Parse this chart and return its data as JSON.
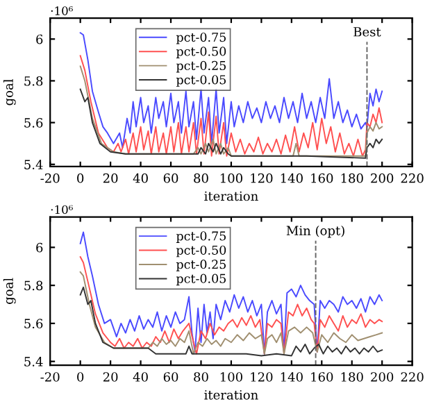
{
  "chart_data": [
    {
      "type": "line",
      "xlabel": "iteration",
      "ylabel": "goal",
      "annotations": [
        "·10⁶"
      ],
      "xlim": [
        -20,
        220
      ],
      "xticks": [
        -20,
        0,
        20,
        40,
        60,
        80,
        100,
        120,
        140,
        160,
        180,
        200,
        220
      ],
      "ylim": [
        5.39,
        6.1
      ],
      "yticks": [
        5.4,
        5.6,
        5.8,
        6
      ],
      "legend": "top left",
      "grid": false,
      "marker": "none",
      "line_style": "solid",
      "ref_lines": [
        {
          "axis": "x",
          "value": 190,
          "label": "Best",
          "color": "#666666",
          "line_style": "dashed"
        }
      ],
      "series": [
        {
          "name": "pct-0.75",
          "color": "#4a4aff",
          "x": [
            0,
            2,
            5,
            8,
            12,
            15,
            18,
            22,
            26,
            28,
            31,
            33,
            35,
            37,
            40,
            42,
            45,
            47,
            50,
            52,
            55,
            57,
            60,
            62,
            65,
            67,
            70,
            72,
            75,
            77,
            80,
            82,
            85,
            87,
            90,
            92,
            95,
            97,
            100,
            102,
            105,
            108,
            111,
            114,
            117,
            120,
            123,
            126,
            129,
            132,
            135,
            138,
            141,
            144,
            147,
            150,
            153,
            156,
            159,
            162,
            165,
            168,
            171,
            174,
            177,
            180,
            183,
            186,
            189,
            190,
            192,
            194,
            196,
            198,
            200
          ],
          "values": [
            6.03,
            6.02,
            5.9,
            5.75,
            5.65,
            5.58,
            5.55,
            5.5,
            5.55,
            5.48,
            5.62,
            5.55,
            5.7,
            5.58,
            5.72,
            5.6,
            5.68,
            5.55,
            5.72,
            5.62,
            5.7,
            5.58,
            5.74,
            5.6,
            5.7,
            5.55,
            5.75,
            5.58,
            5.7,
            5.52,
            5.76,
            5.55,
            5.72,
            5.5,
            5.76,
            5.55,
            5.72,
            5.5,
            5.7,
            5.58,
            5.68,
            5.6,
            5.7,
            5.62,
            5.67,
            5.6,
            5.7,
            5.62,
            5.68,
            5.6,
            5.72,
            5.62,
            5.7,
            5.6,
            5.74,
            5.62,
            5.7,
            5.6,
            5.72,
            5.62,
            5.81,
            5.62,
            5.7,
            5.6,
            5.66,
            5.58,
            5.64,
            5.57,
            5.6,
            5.58,
            5.74,
            5.68,
            5.76,
            5.7,
            5.75
          ]
        },
        {
          "name": "pct-0.50",
          "color": "#ff5050",
          "x": [
            0,
            3,
            7,
            12,
            18,
            22,
            25,
            27,
            30,
            32,
            35,
            37,
            40,
            42,
            45,
            47,
            50,
            52,
            55,
            57,
            60,
            62,
            65,
            67,
            70,
            72,
            75,
            77,
            80,
            82,
            85,
            87,
            90,
            92,
            95,
            97,
            100,
            103,
            106,
            109,
            112,
            115,
            118,
            121,
            124,
            127,
            130,
            133,
            136,
            139,
            142,
            145,
            148,
            151,
            154,
            157,
            160,
            163,
            166,
            169,
            172,
            175,
            178,
            181,
            184,
            187,
            189,
            190,
            192,
            194,
            196,
            198,
            200
          ],
          "values": [
            5.92,
            5.85,
            5.7,
            5.55,
            5.48,
            5.46,
            5.5,
            5.46,
            5.52,
            5.45,
            5.55,
            5.46,
            5.58,
            5.47,
            5.56,
            5.45,
            5.58,
            5.46,
            5.55,
            5.45,
            5.58,
            5.46,
            5.6,
            5.45,
            5.58,
            5.46,
            5.6,
            5.45,
            5.62,
            5.45,
            5.65,
            5.44,
            5.63,
            5.45,
            5.6,
            5.44,
            5.55,
            5.46,
            5.52,
            5.45,
            5.5,
            5.46,
            5.53,
            5.45,
            5.5,
            5.46,
            5.52,
            5.45,
            5.54,
            5.46,
            5.58,
            5.46,
            5.55,
            5.48,
            5.6,
            5.47,
            5.62,
            5.5,
            5.58,
            5.46,
            5.55,
            5.45,
            5.5,
            5.44,
            5.52,
            5.44,
            5.47,
            5.6,
            5.58,
            5.64,
            5.6,
            5.67,
            5.6
          ]
        },
        {
          "name": "pct-0.25",
          "color": "#a08f70",
          "x": [
            0,
            3,
            8,
            14,
            22,
            30,
            50,
            75,
            78,
            80,
            83,
            85,
            88,
            90,
            93,
            95,
            98,
            100,
            120,
            141,
            143,
            145,
            160,
            189,
            190,
            192,
            194,
            196,
            198,
            200
          ],
          "values": [
            5.87,
            5.8,
            5.62,
            5.5,
            5.46,
            5.45,
            5.45,
            5.45,
            5.48,
            5.45,
            5.5,
            5.46,
            5.52,
            5.45,
            5.5,
            5.45,
            5.48,
            5.44,
            5.44,
            5.44,
            5.5,
            5.44,
            5.44,
            5.44,
            5.55,
            5.58,
            5.56,
            5.6,
            5.57,
            5.58
          ]
        },
        {
          "name": "pct-0.05",
          "color": "#333333",
          "x": [
            0,
            3,
            5,
            8,
            13,
            20,
            30,
            50,
            78,
            80,
            83,
            85,
            88,
            90,
            93,
            95,
            98,
            100,
            120,
            150,
            189,
            190,
            192,
            194,
            196,
            198,
            200
          ],
          "values": [
            5.76,
            5.7,
            5.72,
            5.6,
            5.5,
            5.46,
            5.45,
            5.45,
            5.45,
            5.48,
            5.45,
            5.5,
            5.46,
            5.5,
            5.45,
            5.48,
            5.45,
            5.44,
            5.44,
            5.44,
            5.43,
            5.48,
            5.5,
            5.48,
            5.52,
            5.5,
            5.52
          ]
        }
      ]
    },
    {
      "type": "line",
      "xlabel": "iteration",
      "ylabel": "goal",
      "annotations": [
        "·10⁶"
      ],
      "xlim": [
        -20,
        220
      ],
      "xticks": [
        -20,
        0,
        20,
        40,
        60,
        80,
        100,
        120,
        140,
        160,
        180,
        200,
        220
      ],
      "ylim": [
        5.38,
        6.16
      ],
      "yticks": [
        5.4,
        5.6,
        5.8,
        6
      ],
      "legend": "top left",
      "grid": false,
      "marker": "none",
      "line_style": "solid",
      "ref_lines": [
        {
          "axis": "x",
          "value": 156,
          "label": "Min (opt)",
          "color": "#666666",
          "line_style": "dashed"
        }
      ],
      "series": [
        {
          "name": "pct-0.75",
          "color": "#4a4aff",
          "x": [
            0,
            2,
            5,
            8,
            12,
            16,
            20,
            24,
            27,
            30,
            33,
            36,
            39,
            42,
            45,
            48,
            51,
            54,
            57,
            60,
            63,
            66,
            69,
            72,
            74,
            76,
            78,
            80,
            82,
            84,
            86,
            88,
            90,
            93,
            96,
            99,
            102,
            105,
            108,
            111,
            114,
            117,
            120,
            122,
            124,
            127,
            130,
            133,
            135,
            137,
            140,
            143,
            146,
            149,
            152,
            155,
            157,
            159,
            162,
            165,
            168,
            171,
            174,
            177,
            180,
            183,
            186,
            189,
            192,
            195,
            198,
            200
          ],
          "values": [
            6.02,
            6.08,
            5.95,
            5.85,
            5.7,
            5.6,
            5.62,
            5.53,
            5.6,
            5.55,
            5.62,
            5.56,
            5.64,
            5.57,
            5.62,
            5.58,
            5.66,
            5.56,
            5.64,
            5.58,
            5.66,
            5.6,
            5.62,
            5.74,
            5.55,
            5.45,
            5.68,
            5.5,
            5.7,
            5.55,
            5.66,
            5.52,
            5.7,
            5.62,
            5.72,
            5.66,
            5.75,
            5.68,
            5.74,
            5.66,
            5.72,
            5.64,
            5.7,
            5.44,
            5.66,
            5.72,
            5.65,
            5.7,
            5.45,
            5.76,
            5.78,
            5.74,
            5.8,
            5.75,
            5.72,
            5.7,
            5.45,
            5.72,
            5.68,
            5.72,
            5.7,
            5.66,
            5.74,
            5.7,
            5.72,
            5.68,
            5.73,
            5.66,
            5.74,
            5.7,
            5.75,
            5.72
          ]
        },
        {
          "name": "pct-0.50",
          "color": "#ff5050",
          "x": [
            0,
            2,
            5,
            10,
            15,
            20,
            23,
            26,
            29,
            32,
            35,
            38,
            41,
            44,
            47,
            50,
            53,
            56,
            59,
            62,
            65,
            68,
            72,
            75,
            77,
            80,
            83,
            86,
            89,
            92,
            95,
            98,
            101,
            104,
            107,
            110,
            113,
            116,
            119,
            122,
            124,
            127,
            130,
            133,
            135,
            138,
            141,
            144,
            147,
            150,
            153,
            155,
            157,
            159,
            162,
            165,
            168,
            171,
            174,
            177,
            180,
            183,
            186,
            189,
            192,
            195,
            198,
            200
          ],
          "values": [
            5.95,
            5.92,
            5.82,
            5.65,
            5.55,
            5.5,
            5.48,
            5.52,
            5.47,
            5.5,
            5.48,
            5.52,
            5.47,
            5.5,
            5.48,
            5.53,
            5.5,
            5.56,
            5.5,
            5.57,
            5.52,
            5.56,
            5.6,
            5.5,
            5.44,
            5.56,
            5.52,
            5.6,
            5.54,
            5.58,
            5.56,
            5.6,
            5.62,
            5.58,
            5.63,
            5.59,
            5.64,
            5.58,
            5.62,
            5.44,
            5.6,
            5.58,
            5.62,
            5.6,
            5.44,
            5.66,
            5.64,
            5.7,
            5.64,
            5.68,
            5.62,
            5.6,
            5.45,
            5.62,
            5.58,
            5.64,
            5.6,
            5.56,
            5.64,
            5.58,
            5.62,
            5.6,
            5.65,
            5.58,
            5.62,
            5.6,
            5.62,
            5.61
          ]
        },
        {
          "name": "pct-0.25",
          "color": "#a08f70",
          "x": [
            0,
            2,
            6,
            10,
            16,
            22,
            30,
            45,
            48,
            51,
            54,
            57,
            60,
            63,
            66,
            69,
            72,
            75,
            78,
            81,
            84,
            87,
            90,
            93,
            96,
            100,
            104,
            108,
            112,
            116,
            120,
            122,
            124,
            127,
            130,
            133,
            135,
            138,
            142,
            146,
            150,
            154,
            157,
            160,
            164,
            168,
            172,
            176,
            180,
            184,
            188,
            192,
            196,
            200
          ],
          "values": [
            5.87,
            5.85,
            5.7,
            5.58,
            5.5,
            5.47,
            5.47,
            5.47,
            5.5,
            5.48,
            5.52,
            5.49,
            5.51,
            5.48,
            5.52,
            5.5,
            5.56,
            5.44,
            5.5,
            5.48,
            5.52,
            5.49,
            5.51,
            5.48,
            5.52,
            5.5,
            5.54,
            5.51,
            5.55,
            5.52,
            5.54,
            5.44,
            5.52,
            5.54,
            5.5,
            5.55,
            5.44,
            5.56,
            5.58,
            5.55,
            5.58,
            5.55,
            5.45,
            5.54,
            5.5,
            5.55,
            5.52,
            5.5,
            5.54,
            5.51,
            5.52,
            5.53,
            5.54,
            5.55
          ]
        },
        {
          "name": "pct-0.05",
          "color": "#333333",
          "x": [
            0,
            2,
            5,
            7,
            10,
            15,
            22,
            45,
            50,
            70,
            72,
            74,
            100,
            110,
            120,
            130,
            140,
            143,
            146,
            149,
            152,
            155,
            158,
            161,
            164,
            167,
            170,
            173,
            176,
            179,
            182,
            185,
            188,
            191,
            194,
            197,
            200
          ],
          "values": [
            5.75,
            5.79,
            5.7,
            5.72,
            5.6,
            5.5,
            5.47,
            5.47,
            5.44,
            5.44,
            5.48,
            5.44,
            5.44,
            5.44,
            5.43,
            5.44,
            5.43,
            5.48,
            5.45,
            5.49,
            5.44,
            5.47,
            5.49,
            5.44,
            5.48,
            5.45,
            5.47,
            5.44,
            5.48,
            5.45,
            5.47,
            5.44,
            5.47,
            5.45,
            5.48,
            5.45,
            5.46
          ]
        }
      ]
    }
  ]
}
